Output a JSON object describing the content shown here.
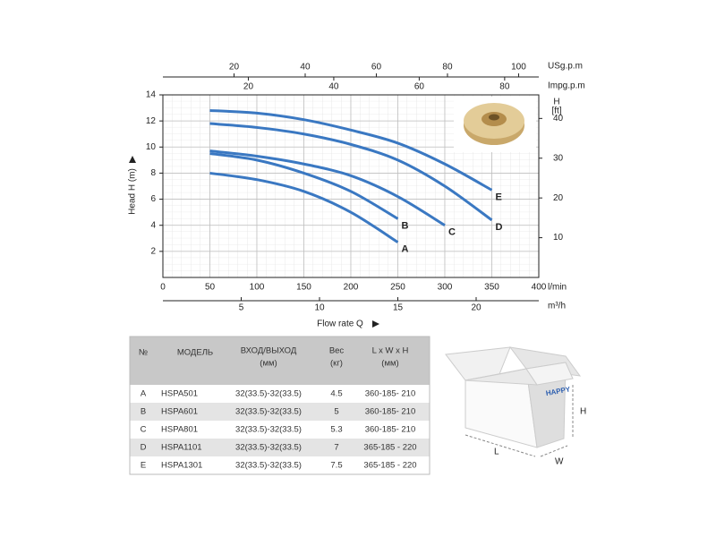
{
  "chart_data": {
    "type": "line",
    "ylabel": "Head H (m)",
    "xlabel": "Flow rate Q",
    "xunit": "l/min",
    "x": [
      50,
      100,
      150,
      200,
      250,
      300,
      350
    ],
    "xlim": [
      0,
      400
    ],
    "xticks": [
      0,
      50,
      100,
      150,
      200,
      250,
      300,
      350,
      400
    ],
    "ylim": [
      0,
      14
    ],
    "yticks": [
      2,
      4,
      6,
      8,
      10,
      12,
      14
    ],
    "grid": true,
    "color": "#3a78c2",
    "series": [
      {
        "name": "A",
        "values": [
          8.0,
          7.5,
          6.6,
          5.0,
          2.7,
          null,
          null
        ]
      },
      {
        "name": "B",
        "values": [
          9.5,
          9.0,
          8.0,
          6.6,
          4.5,
          null,
          null
        ]
      },
      {
        "name": "C",
        "values": [
          9.7,
          9.3,
          8.7,
          7.8,
          6.2,
          4.0,
          null
        ]
      },
      {
        "name": "D",
        "values": [
          11.8,
          11.5,
          11.0,
          10.2,
          9.0,
          7.0,
          4.4
        ]
      },
      {
        "name": "E",
        "values": [
          12.8,
          12.6,
          12.1,
          11.3,
          10.3,
          8.7,
          6.7
        ]
      }
    ],
    "top_axes": [
      {
        "label": "USg.p.m",
        "xlim": [
          0,
          105.67
        ],
        "xticks": [
          20,
          40,
          60,
          80,
          100
        ]
      },
      {
        "label": "Impg.p.m",
        "xlim": [
          0,
          87.99
        ],
        "xticks": [
          20,
          40,
          60,
          80
        ]
      }
    ],
    "bottom_axis2": {
      "label": "m³/h",
      "xlim": [
        0,
        24
      ],
      "xticks": [
        5,
        10,
        15,
        20
      ]
    },
    "y2label": "H",
    "y2unit": "[ft]",
    "y2lim": [
      0,
      45.93
    ],
    "y2ticks": [
      10,
      20,
      30,
      40
    ]
  },
  "table": {
    "header": [
      [
        "№"
      ],
      [
        "МОДЕЛЬ"
      ],
      [
        "ВХОД/ВЫХОД",
        "(мм)"
      ],
      [
        "Вес",
        "(кг)"
      ],
      [
        "L x W x H",
        "(мм)"
      ]
    ],
    "rows": [
      [
        "A",
        "HSPA501",
        "32(33.5)-32(33.5)",
        "4.5",
        "360-185- 210"
      ],
      [
        "B",
        "HSPA601",
        "32(33.5)-32(33.5)",
        "5",
        "360-185- 210"
      ],
      [
        "C",
        "HSPA801",
        "32(33.5)-32(33.5)",
        "5.3",
        "360-185- 210"
      ],
      [
        "D",
        "HSPA1101",
        "32(33.5)-32(33.5)",
        "7",
        "365-185 - 220"
      ],
      [
        "E",
        "HSPA1301",
        "32(33.5)-32(33.5)",
        "7.5",
        "365-185 - 220"
      ]
    ]
  },
  "box": {
    "logo": "HAPPY",
    "height": "H",
    "length": "L",
    "width": "W"
  }
}
